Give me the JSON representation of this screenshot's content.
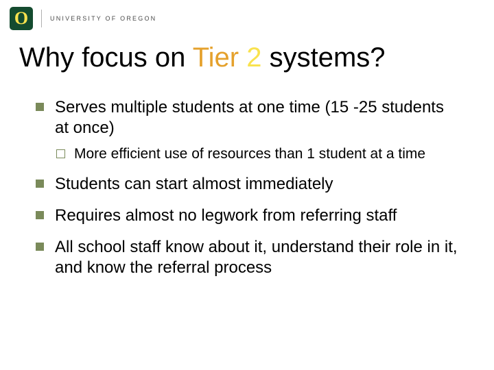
{
  "colors": {
    "background": "#ffffff",
    "title_text": "#000000",
    "body_text": "#000000",
    "accent_orange": "#e5a12c",
    "accent_yellow": "#f9e24e",
    "bullet_fill": "#7a8a5a",
    "subbullet_border": "#7a8a5a",
    "logo_bg": "#144b2f",
    "logo_o_fill": "#f9e24e",
    "logo_text": "#4a4a4a",
    "logo_divider": "#b0b0b0"
  },
  "typography": {
    "title_fontsize": 40,
    "l1_fontsize": 24,
    "l2_fontsize": 21,
    "logo_text_fontsize": 9,
    "font_family": "Arial"
  },
  "header": {
    "logo_letter": "O",
    "institution": "UNIVERSITY OF OREGON"
  },
  "title": {
    "pre": "Why focus on ",
    "hl1": "Tier",
    "mid": " ",
    "hl2": "2",
    "post": " systems?"
  },
  "bullets": [
    {
      "text": "Serves multiple students at one time (15 -25 students at once)",
      "sub": [
        {
          "text": "More efficient use of resources than 1 student at a time"
        }
      ]
    },
    {
      "text": "Students can start almost immediately",
      "sub": []
    },
    {
      "text": "Requires almost no legwork from referring staff",
      "sub": []
    },
    {
      "text": "All school staff know about it, understand their role in it, and know the referral process",
      "sub": []
    }
  ]
}
